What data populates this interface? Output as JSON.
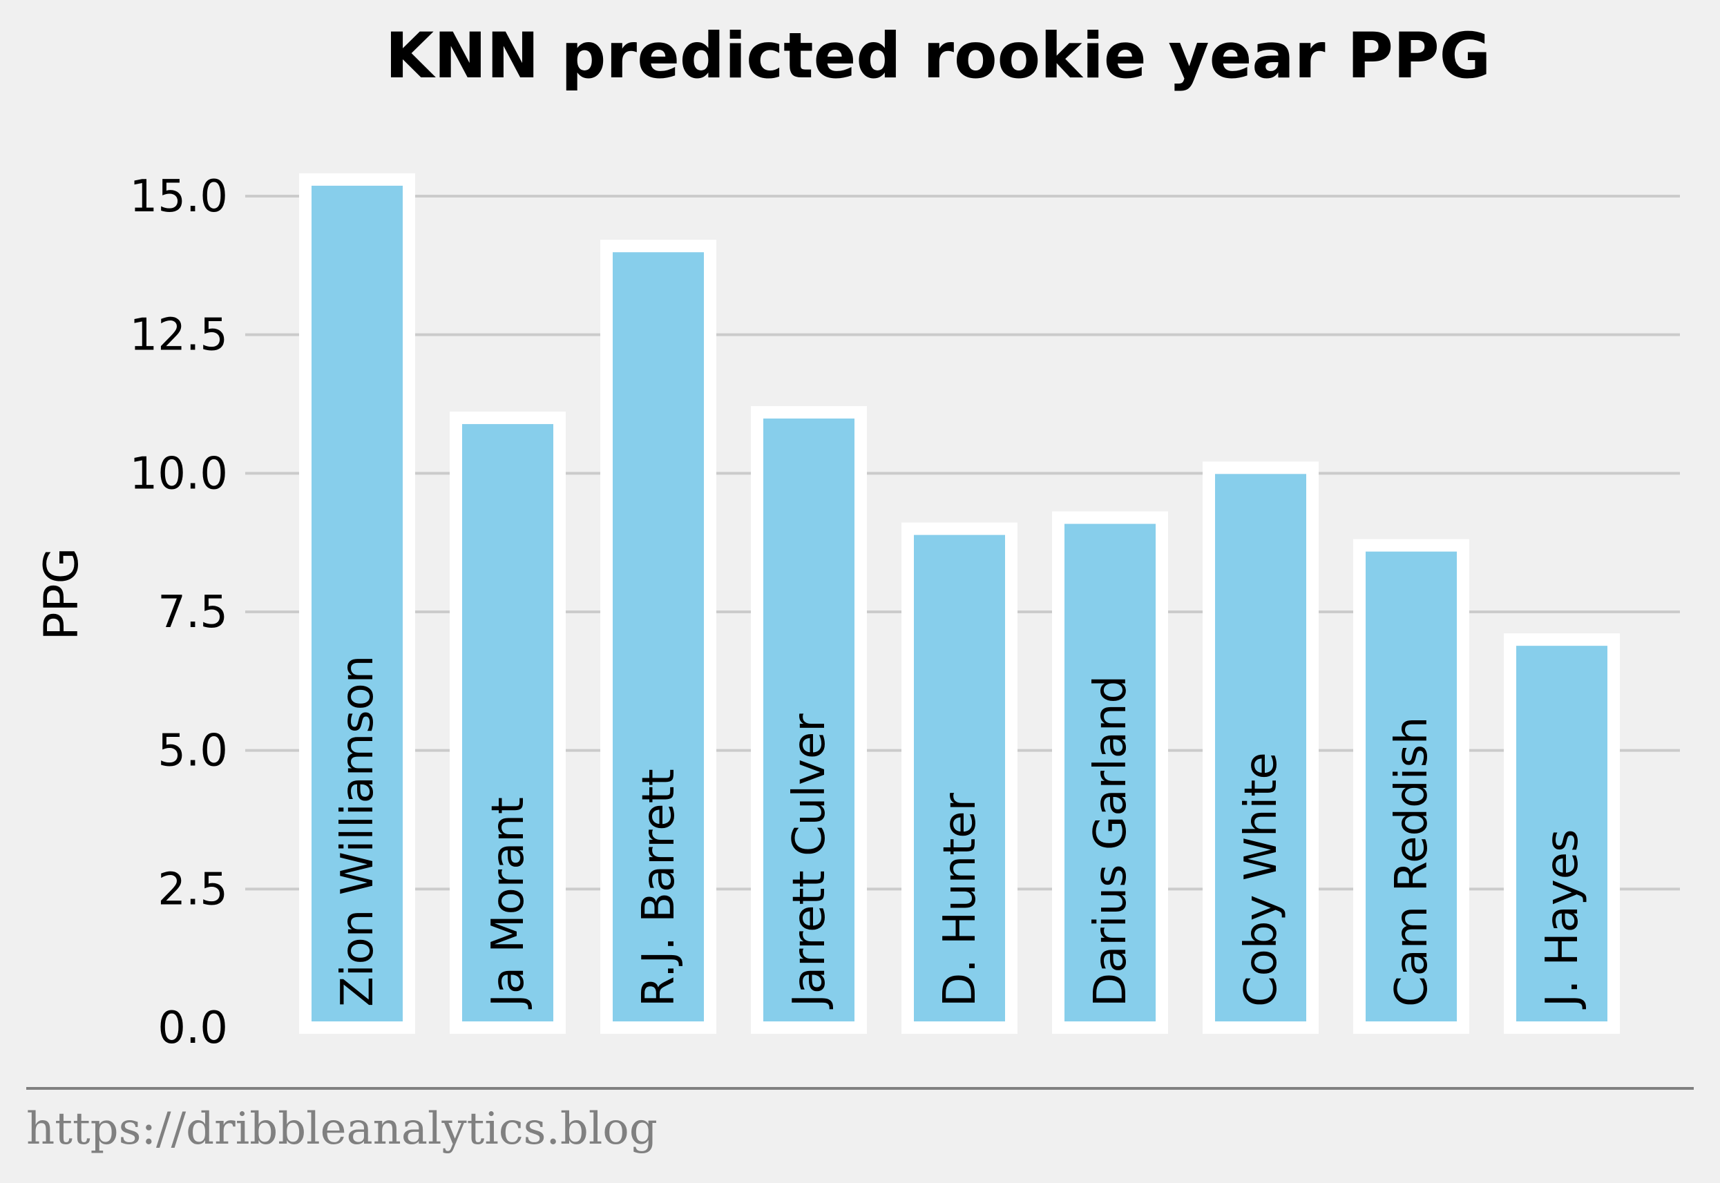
{
  "chart_data": {
    "type": "bar",
    "title": "KNN predicted rookie year PPG",
    "xlabel": "",
    "ylabel": "PPG",
    "ylim": [
      0,
      15.5
    ],
    "yticks": [
      "0.0",
      "2.5",
      "5.0",
      "7.5",
      "10.0",
      "12.5",
      "15.0"
    ],
    "grid": "horizontal",
    "categories": [
      "Zion Williamson",
      "Ja Morant",
      "R.J. Barrett",
      "Jarrett Culver",
      "D. Hunter",
      "Darius Garland",
      "Coby White",
      "Cam Reddish",
      "J. Hayes"
    ],
    "values": [
      15.3,
      11.0,
      14.1,
      11.1,
      9.0,
      9.2,
      10.1,
      8.7,
      7.0
    ],
    "colors": {
      "bar_fill": "#87ceeb",
      "bar_edge": "#ffffff",
      "grid": "#cbcbcb",
      "background": "#f0f0f0"
    }
  },
  "footer": {
    "source": "https://dribbleanalytics.blog"
  }
}
